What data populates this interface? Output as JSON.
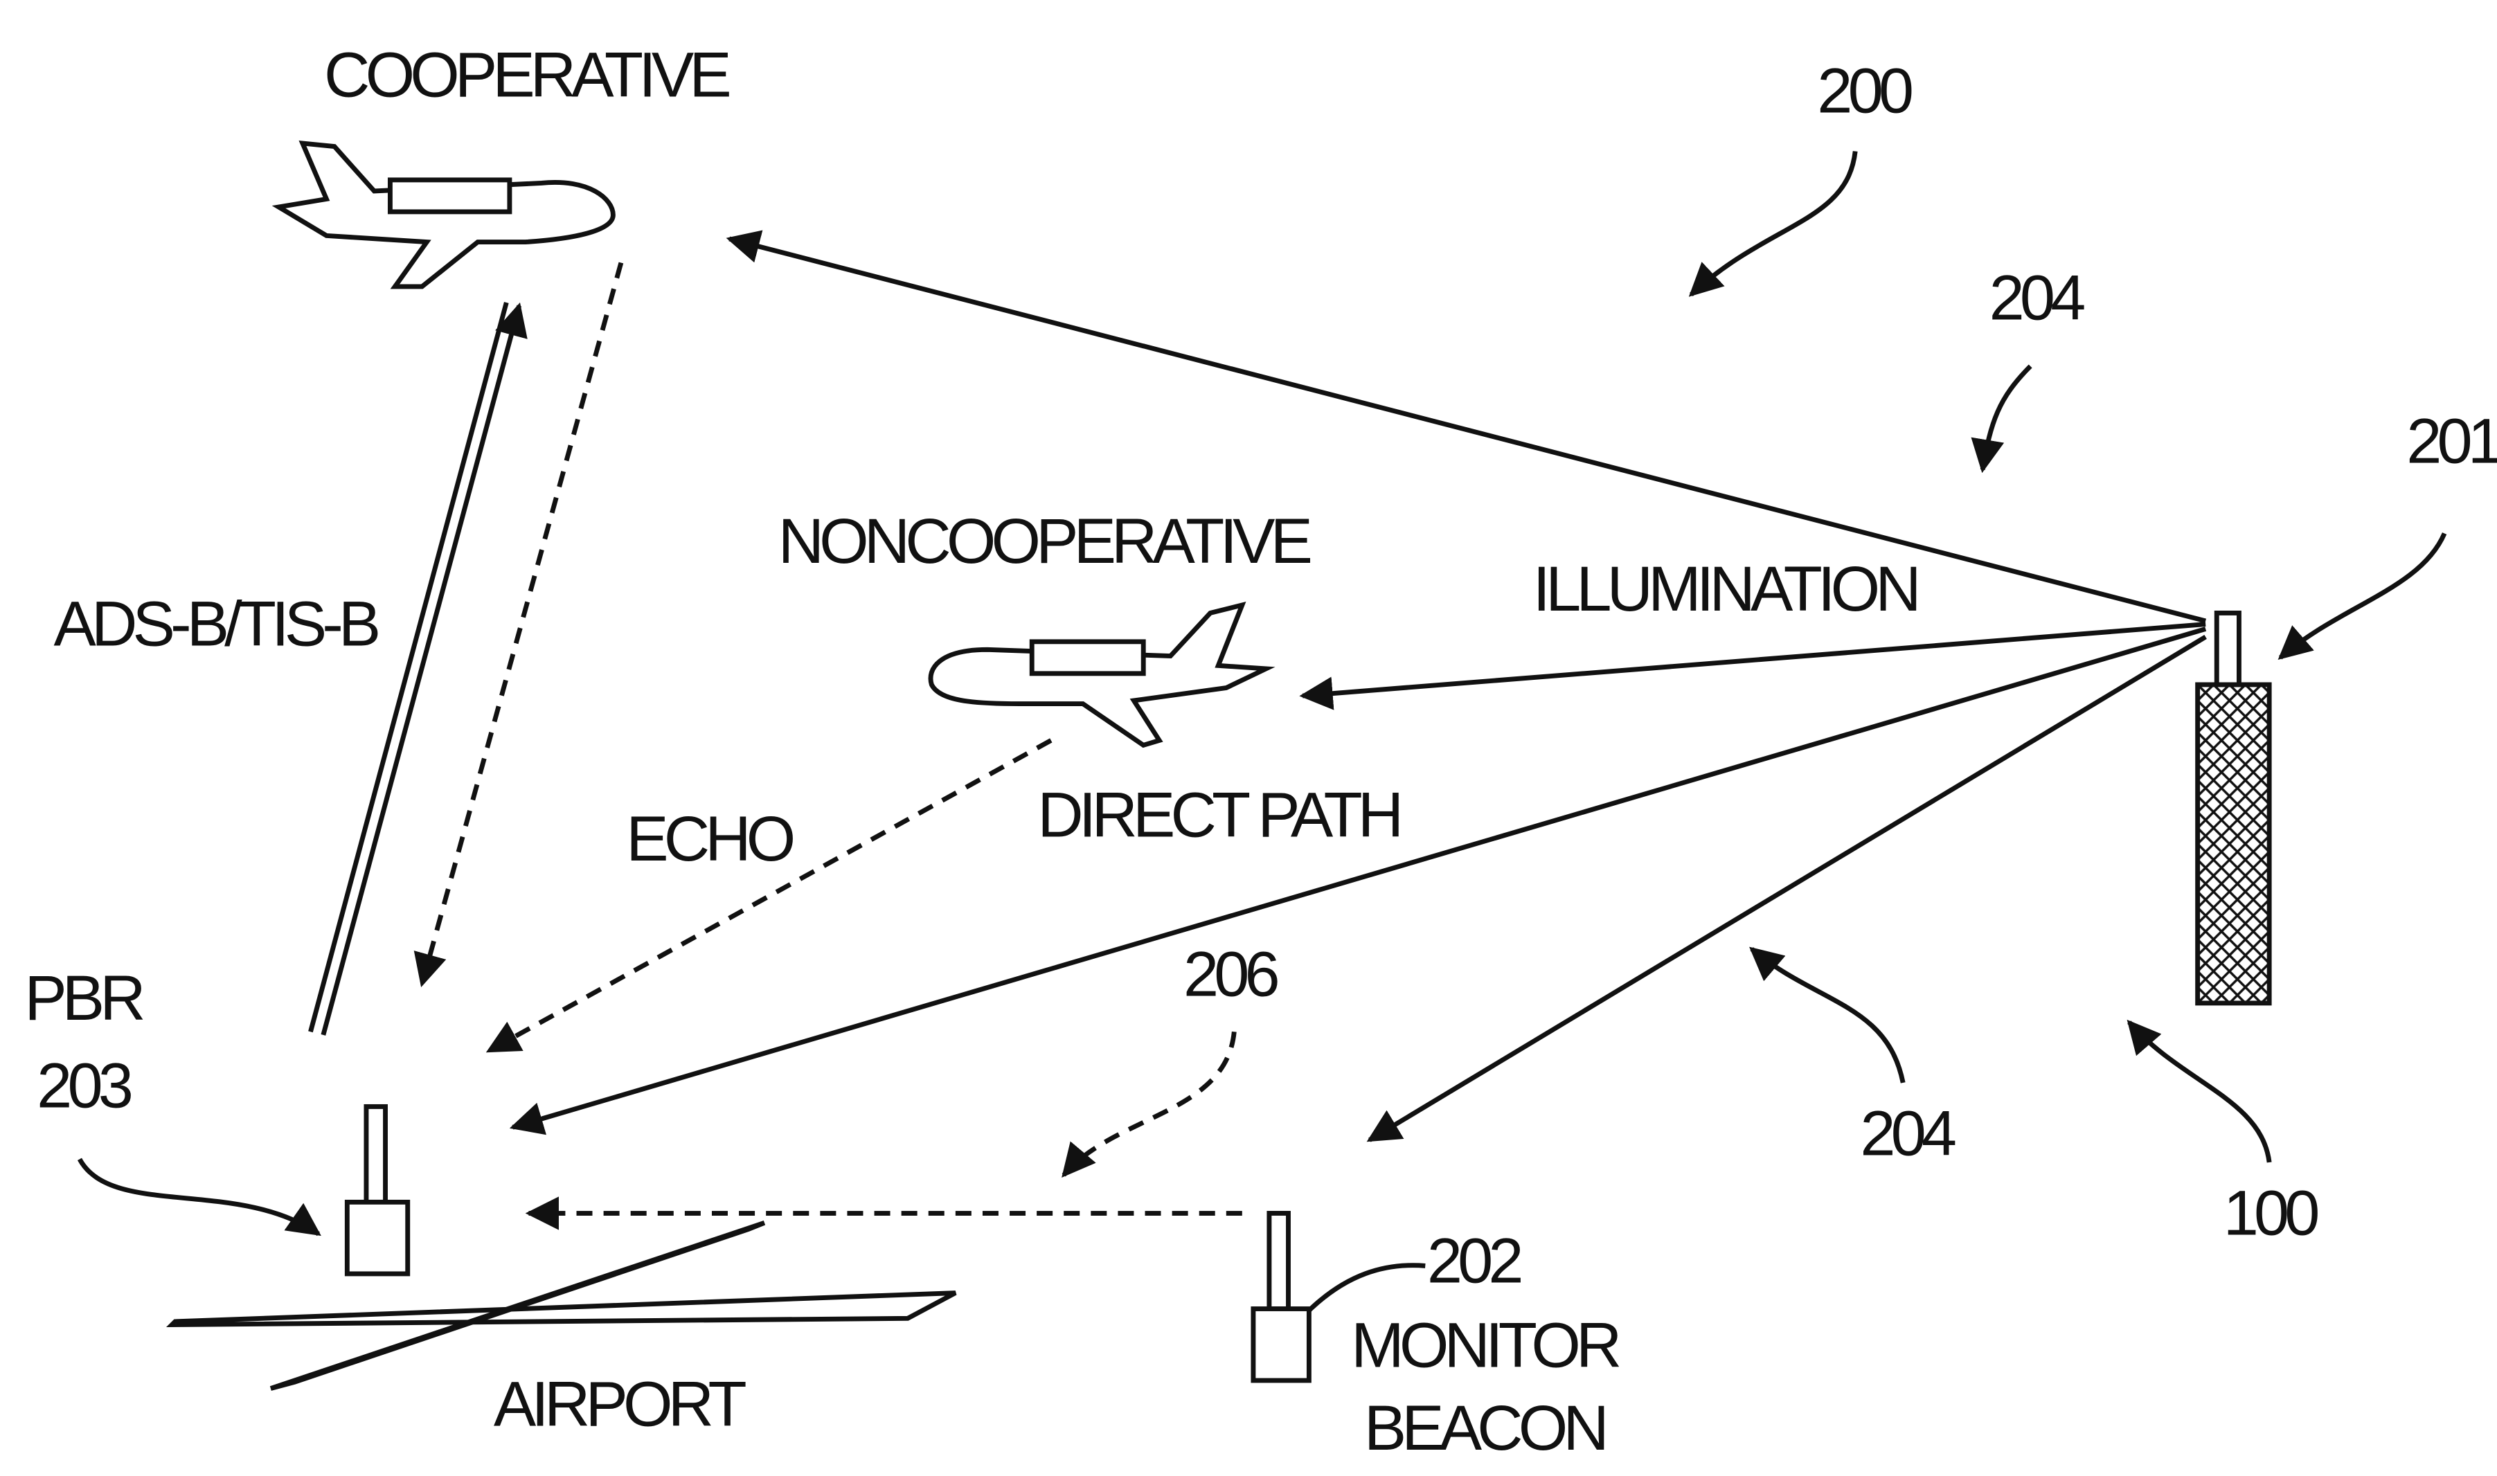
{
  "labels": {
    "cooperative": "COOPERATIVE",
    "system": "200",
    "signal_top": "204",
    "transmitter": "201",
    "noncooperative": "NONCOOPERATIVE",
    "illumination": "ILLUMINATION",
    "adsb": "ADS-B/TIS-B",
    "echo": "ECHO",
    "direct_path": "DIRECT PATH",
    "monitor_signal": "206",
    "pbr": "PBR",
    "pbr_ref": "203",
    "beacon_ref": "202",
    "monitor": "MONITOR",
    "beacon": "BEACON",
    "airport": "AIRPORT",
    "signal_bottom": "204",
    "system_ref": "100"
  }
}
